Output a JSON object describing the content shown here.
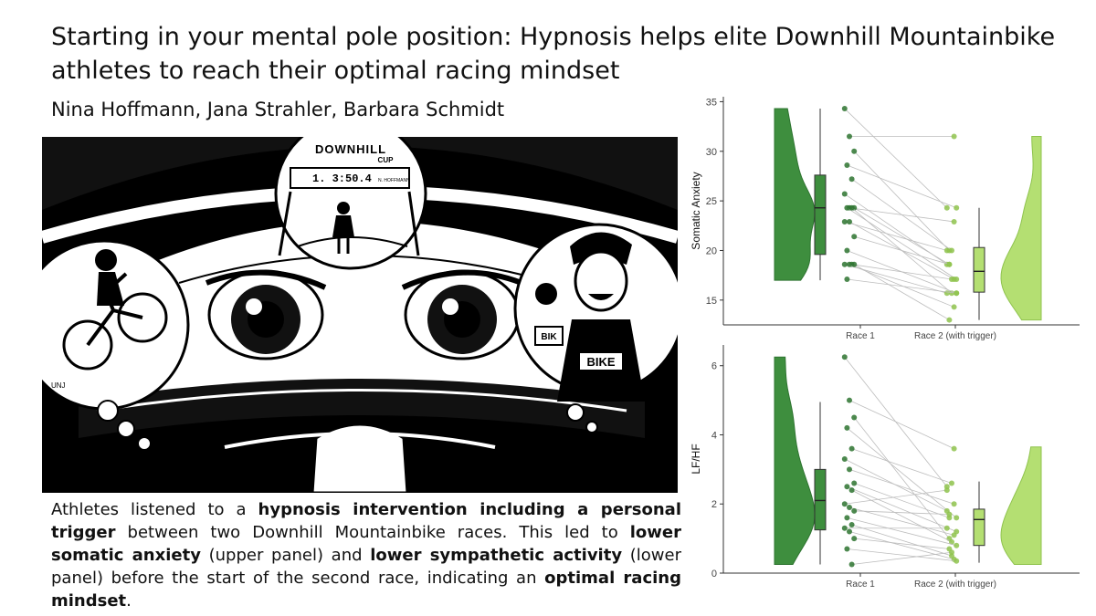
{
  "title": "Starting in your mental pole position: Hypnosis helps elite Downhill Mountainbike athletes to reach their optimal racing mindset",
  "authors": "Nina Hoffmann, Jana Strahler, Barbara Schmidt",
  "illustration": {
    "banner_text": "DOWNHILL",
    "banner_sub": "CUP",
    "timer_text": "1. 3:50.4",
    "timer_name": "N. HOFFMANN",
    "shirt_text": "BIKE",
    "sign_text": "BIK",
    "signature": "UNJ"
  },
  "caption": {
    "p1": "Athletes listened to a ",
    "b1": "hypnosis intervention including a personal trigger",
    "p2": " between two Downhill Mountainbike races. This led to ",
    "b2": "lower somatic anxiety",
    "p3": " (upper panel) and ",
    "b3": "lower sympathetic activity",
    "p4": " (lower panel) before the start of the second race, indicating an ",
    "b4": "optimal racing mindset",
    "p5": "."
  },
  "colors": {
    "race1": "#3e8e3e",
    "race2": "#b4df72",
    "race1_dark": "#2e7430",
    "race2_dark": "#8fc34e",
    "paired_line": "#bdbdbd"
  },
  "chart_data": [
    {
      "type": "raincloud",
      "ylabel": "Somatic Anxiety",
      "ylim": [
        12.5,
        35.5
      ],
      "yticks": [
        15,
        20,
        25,
        30,
        35
      ],
      "categories": [
        "Race 1",
        "Race 2 (with trigger)"
      ],
      "violin_range": [
        [
          17,
          34.3
        ],
        [
          13,
          31.5
        ]
      ],
      "box": [
        {
          "min": 17,
          "q1": 19.6,
          "median": 24.3,
          "q3": 27.6,
          "max": 34.3
        },
        {
          "min": 13,
          "q1": 15.8,
          "median": 17.9,
          "q3": 20.3,
          "max": 24.3
        }
      ],
      "paired": [
        [
          34.3,
          24.3
        ],
        [
          31.5,
          31.5
        ],
        [
          30,
          20
        ],
        [
          28.6,
          24.3
        ],
        [
          27.2,
          20
        ],
        [
          25.7,
          18.6
        ],
        [
          24.3,
          22.9
        ],
        [
          24.3,
          18.6
        ],
        [
          24.3,
          17.1
        ],
        [
          24.3,
          15.7
        ],
        [
          22.9,
          20
        ],
        [
          22.9,
          17.1
        ],
        [
          21.4,
          18.6
        ],
        [
          20,
          15.7
        ],
        [
          18.6,
          17.1
        ],
        [
          18.6,
          15.7
        ],
        [
          18.6,
          14.3
        ],
        [
          18.6,
          13
        ],
        [
          17.1,
          15.7
        ]
      ]
    },
    {
      "type": "raincloud",
      "ylabel": "LF/HF",
      "ylim": [
        0,
        6.6
      ],
      "yticks": [
        0,
        2,
        4,
        6
      ],
      "categories": [
        "Race 1",
        "Race 2 (with trigger)"
      ],
      "violin_range": [
        [
          0.25,
          6.25
        ],
        [
          0.25,
          3.65
        ]
      ],
      "box": [
        {
          "min": 0.25,
          "q1": 1.25,
          "median": 2.1,
          "q3": 3.0,
          "max": 4.95
        },
        {
          "min": 0.3,
          "q1": 0.8,
          "median": 1.55,
          "q3": 1.85,
          "max": 2.65
        }
      ],
      "paired": [
        [
          6.25,
          2.5
        ],
        [
          5.0,
          3.6
        ],
        [
          4.5,
          1.0
        ],
        [
          4.2,
          1.6
        ],
        [
          3.6,
          2.6
        ],
        [
          3.3,
          1.8
        ],
        [
          3.0,
          2.0
        ],
        [
          2.6,
          1.6
        ],
        [
          2.5,
          1.2
        ],
        [
          2.4,
          0.9
        ],
        [
          2.0,
          2.4
        ],
        [
          1.9,
          1.1
        ],
        [
          1.8,
          1.7
        ],
        [
          1.6,
          0.8
        ],
        [
          1.4,
          0.5
        ],
        [
          1.3,
          1.3
        ],
        [
          1.2,
          0.4
        ],
        [
          1.0,
          0.7
        ],
        [
          0.7,
          0.35
        ],
        [
          0.25,
          0.6
        ]
      ]
    }
  ]
}
